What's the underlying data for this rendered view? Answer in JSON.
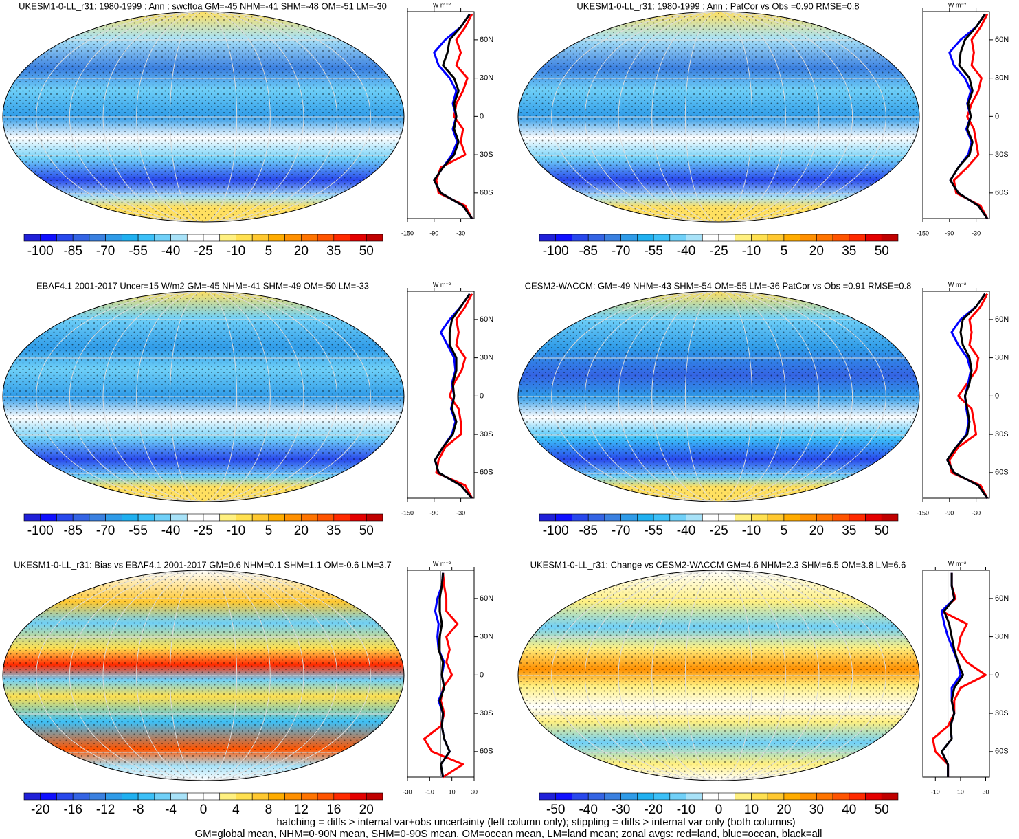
{
  "latitudes": [
    -80,
    -70,
    -60,
    -50,
    -40,
    -30,
    -20,
    -10,
    0,
    10,
    20,
    30,
    40,
    50,
    60,
    70,
    80
  ],
  "palette": [
    "#2020d8",
    "#1010ff",
    "#2848ec",
    "#3464e4",
    "#3a80e0",
    "#2f9be8",
    "#20b0f0",
    "#3cc0f8",
    "#70d0f8",
    "#a8e2f8",
    "#ffffff",
    "#ffffff",
    "#fff080",
    "#ffe050",
    "#ffc830",
    "#ffac00",
    "#ff9000",
    "#ff7400",
    "#ff5400",
    "#ff2a00",
    "#e40000",
    "#c00000"
  ],
  "panels": [
    {
      "title": "UKESM1-0-LL_r31: 1980-1999 : Ann : swcftoa GM=-45 NHM=-41 SHM=-48 OM=-51 LM=-30",
      "colorbar": [
        -100,
        -85,
        -70,
        -55,
        -40,
        -25,
        -10,
        5,
        20,
        35,
        50
      ],
      "zonal": {
        "unit": "W m⁻²",
        "xlim": [
          -150,
          0
        ],
        "xticks": [
          -150,
          -90,
          -30
        ],
        "ylim": [
          -80,
          82
        ],
        "yticks": [
          {
            "value": 60,
            "label": "60N"
          },
          {
            "value": 30,
            "label": "30N"
          },
          0,
          {
            "value": -30,
            "label": "30S"
          },
          {
            "value": -60,
            "label": "60S"
          }
        ],
        "series": [
          {
            "color": "#ff0000",
            "values": [
              -5,
              -20,
              -80,
              -85,
              -75,
              -20,
              -30,
              -25,
              -45,
              -40,
              -25,
              -15,
              -40,
              -30,
              -40,
              -20,
              -5
            ]
          },
          {
            "color": "#0000ff",
            "values": [
              -5,
              -25,
              -75,
              -90,
              -70,
              -50,
              -38,
              -48,
              -40,
              -48,
              -40,
              -55,
              -80,
              -90,
              -65,
              -30,
              -10
            ]
          },
          {
            "color": "#000000",
            "values": [
              -5,
              -25,
              -75,
              -90,
              -70,
              -45,
              -35,
              -45,
              -40,
              -45,
              -35,
              -45,
              -70,
              -60,
              -55,
              -30,
              -10
            ]
          }
        ]
      }
    },
    {
      "title": "UKESM1-0-LL_r31: 1980-1999 : Ann : PatCor vs Obs =0.90 RMSE=0.8",
      "colorbar": [
        -100,
        -85,
        -70,
        -55,
        -40,
        -25,
        -10,
        5,
        20,
        35,
        50
      ],
      "zonal": {
        "unit": "W m⁻²",
        "xlim": [
          -150,
          0
        ],
        "xticks": [
          -150,
          -90,
          -30
        ],
        "ylim": [
          -80,
          82
        ],
        "yticks": [
          {
            "value": 60,
            "label": "60N"
          },
          {
            "value": 30,
            "label": "30N"
          },
          0,
          {
            "value": -30,
            "label": "30S"
          },
          {
            "value": -60,
            "label": "60S"
          }
        ],
        "series": [
          {
            "color": "#ff0000",
            "values": [
              -5,
              -20,
              -75,
              -80,
              -50,
              -25,
              -30,
              -35,
              -50,
              -40,
              -25,
              -18,
              -40,
              -35,
              -40,
              -20,
              -5
            ]
          },
          {
            "color": "#0000ff",
            "values": [
              -5,
              -25,
              -70,
              -88,
              -70,
              -48,
              -40,
              -52,
              -42,
              -50,
              -42,
              -55,
              -80,
              -90,
              -65,
              -30,
              -10
            ]
          },
          {
            "color": "#000000",
            "values": [
              -5,
              -25,
              -70,
              -88,
              -70,
              -45,
              -38,
              -50,
              -42,
              -48,
              -38,
              -45,
              -68,
              -65,
              -55,
              -30,
              -10
            ]
          }
        ]
      }
    },
    {
      "title": "EBAF4.1 2001-2017 Uncer=15 W/m2 GM=-45 NHM=-41 SHM=-49 OM=-50 LM=-33",
      "colorbar": [
        -100,
        -85,
        -70,
        -55,
        -40,
        -25,
        -10,
        5,
        20,
        35,
        50
      ],
      "zonal": {
        "unit": "W m⁻²",
        "xlim": [
          -150,
          0
        ],
        "xticks": [
          -150,
          -90,
          -30
        ],
        "ylim": [
          -80,
          82
        ],
        "yticks": [
          {
            "value": 60,
            "label": "60N"
          },
          {
            "value": 30,
            "label": "30N"
          },
          0,
          {
            "value": -30,
            "label": "30S"
          },
          {
            "value": -60,
            "label": "60S"
          }
        ],
        "series": [
          {
            "color": "#ff0000",
            "values": [
              -5,
              -20,
              -85,
              -80,
              -65,
              -30,
              -30,
              -35,
              -55,
              -45,
              -28,
              -20,
              -40,
              -35,
              -40,
              -20,
              -5
            ]
          },
          {
            "color": "#0000ff",
            "values": [
              -5,
              -30,
              -80,
              -88,
              -70,
              -50,
              -42,
              -52,
              -45,
              -50,
              -42,
              -45,
              -60,
              -75,
              -55,
              -30,
              -10
            ]
          },
          {
            "color": "#000000",
            "values": [
              -5,
              -30,
              -80,
              -88,
              -70,
              -48,
              -40,
              -50,
              -45,
              -48,
              -40,
              -40,
              -55,
              -55,
              -50,
              -30,
              -10
            ]
          }
        ]
      }
    },
    {
      "title": "CESM2-WACCM: GM=-49 NHM=-43 SHM=-54 OM=-55 LM=-36 PatCor vs Obs =0.91 RMSE=0.8",
      "colorbar": [
        -100,
        -85,
        -70,
        -55,
        -40,
        -25,
        -10,
        5,
        20,
        35,
        50
      ],
      "zonal": {
        "unit": "W m⁻²",
        "xlim": [
          -150,
          0
        ],
        "xticks": [
          -150,
          -90,
          -30
        ],
        "ylim": [
          -80,
          82
        ],
        "yticks": [
          {
            "value": 60,
            "label": "60N"
          },
          {
            "value": 30,
            "label": "30N"
          },
          0,
          {
            "value": -30,
            "label": "30S"
          },
          {
            "value": -60,
            "label": "60S"
          }
        ],
        "series": [
          {
            "color": "#ff0000",
            "values": [
              -5,
              -20,
              -85,
              -90,
              -70,
              -30,
              -35,
              -40,
              -70,
              -50,
              -30,
              -25,
              -45,
              -40,
              -45,
              -20,
              -5
            ]
          },
          {
            "color": "#0000ff",
            "values": [
              -5,
              -25,
              -80,
              -95,
              -75,
              -52,
              -47,
              -52,
              -55,
              -48,
              -42,
              -50,
              -70,
              -85,
              -65,
              -30,
              -10
            ]
          },
          {
            "color": "#000000",
            "values": [
              -5,
              -25,
              -80,
              -95,
              -75,
              -50,
              -45,
              -50,
              -55,
              -45,
              -40,
              -45,
              -60,
              -65,
              -60,
              -30,
              -10
            ]
          }
        ]
      }
    },
    {
      "title": "UKESM1-0-LL_r31: Bias vs EBAF4.1 2001-2017 GM=0.6 NHM=0.1 SHM=1.1 OM=-0.6 LM=3.7",
      "colorbar": [
        -20,
        -16,
        -12,
        -8,
        -4,
        0,
        4,
        8,
        12,
        16,
        20
      ],
      "zonal": {
        "unit": "W m⁻²",
        "xlim": [
          -30,
          30
        ],
        "xticks": [
          -30,
          -10,
          10,
          30
        ],
        "ylim": [
          -80,
          82
        ],
        "yticks": [
          {
            "value": 60,
            "label": "60N"
          },
          {
            "value": 30,
            "label": "30N"
          },
          0,
          {
            "value": -30,
            "label": "30S"
          },
          {
            "value": -60,
            "label": "60S"
          }
        ],
        "series": [
          {
            "color": "#ff0000",
            "values": [
              2,
              20,
              -8,
              -15,
              0,
              3,
              0,
              2,
              10,
              5,
              8,
              5,
              15,
              5,
              5,
              3,
              2
            ]
          },
          {
            "color": "#0000ff",
            "values": [
              2,
              0,
              8,
              3,
              1,
              2,
              -2,
              3,
              1,
              3,
              -2,
              -3,
              -2,
              -5,
              -3,
              1,
              2
            ]
          },
          {
            "color": "#000000",
            "values": [
              2,
              0,
              8,
              3,
              1,
              2,
              -1,
              3,
              1,
              2,
              -2,
              -1,
              1,
              -1,
              -1,
              1,
              2
            ]
          }
        ]
      }
    },
    {
      "title": "UKESM1-0-LL_r31: Change vs CESM2-WACCM GM=4.6 NHM=2.3 SHM=6.5 OM=3.8 LM=6.6",
      "colorbar": [
        -50,
        -40,
        -30,
        -20,
        -10,
        0,
        10,
        20,
        30,
        40,
        50
      ],
      "zonal": {
        "unit": "W m⁻²",
        "xlim": [
          -20,
          33
        ],
        "xticks": [
          -10,
          10,
          30
        ],
        "ylim": [
          -80,
          82
        ],
        "yticks": [
          {
            "value": 60,
            "label": "60N"
          },
          {
            "value": 30,
            "label": "30N"
          },
          0,
          {
            "value": -30,
            "label": "30S"
          },
          {
            "value": -60,
            "label": "60S"
          }
        ],
        "series": [
          {
            "color": "#ff0000",
            "values": [
              0,
              0,
              -10,
              -12,
              0,
              5,
              5,
              10,
              30,
              15,
              8,
              10,
              15,
              -5,
              6,
              3,
              3
            ]
          },
          {
            "color": "#0000ff",
            "values": [
              0,
              0,
              -5,
              3,
              2,
              5,
              3,
              3,
              10,
              8,
              4,
              0,
              -3,
              -5,
              5,
              3,
              3
            ]
          },
          {
            "color": "#000000",
            "values": [
              0,
              0,
              -5,
              3,
              2,
              5,
              3,
              5,
              12,
              8,
              5,
              3,
              1,
              -3,
              5,
              3,
              3
            ]
          }
        ]
      }
    }
  ],
  "footer": [
    "hatching = diffs > internal var+obs uncertainty (left column only); stippling = diffs > internal var only (both columns)",
    "GM=global mean, NHM=0-90N mean, SHM=0-90S mean, OM=ocean mean, LM=land mean; zonal avgs: red=land, blue=ocean, black=all"
  ]
}
